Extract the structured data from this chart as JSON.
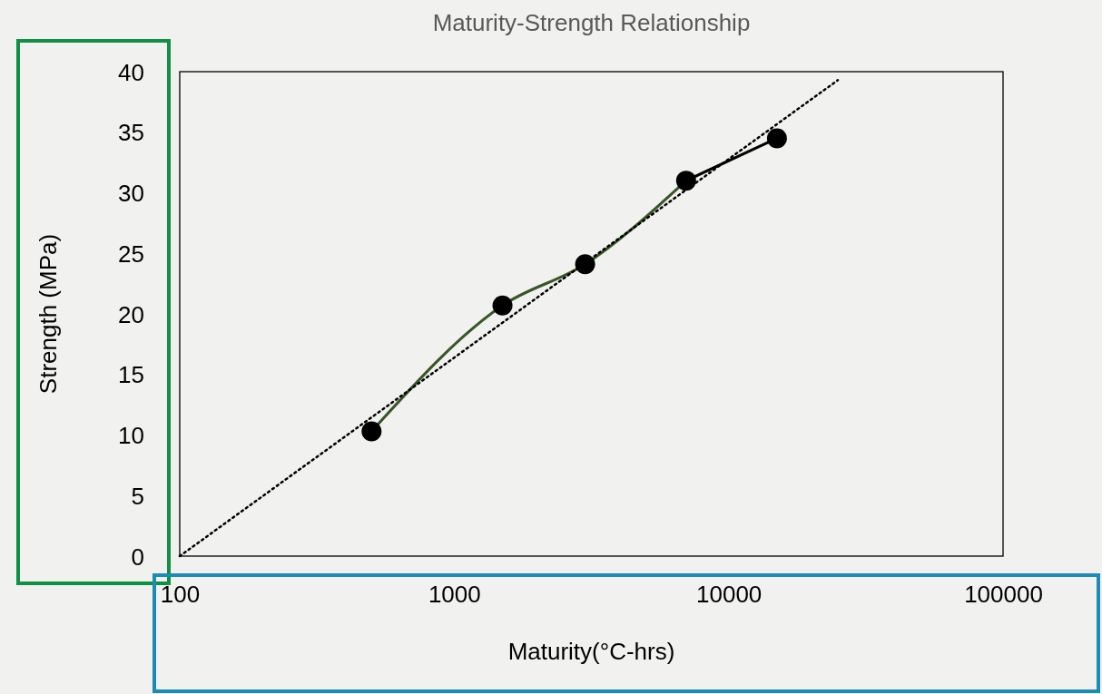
{
  "chart_data": {
    "type": "scatter",
    "title": "Maturity-Strength Relationship",
    "xlabel": "Maturity(°C-hrs)",
    "ylabel": "Strength (MPa)",
    "log": "x",
    "xlim": [
      100,
      100000
    ],
    "xticks": [
      100,
      1000,
      10000,
      100000
    ],
    "ylim": [
      0,
      40
    ],
    "yticks": [
      0,
      5,
      10,
      15,
      20,
      25,
      30,
      35,
      40
    ],
    "grid": false,
    "series": [
      {
        "type": "line",
        "color": "#375623",
        "marker": "none",
        "line_style": "solid",
        "x": [
          500,
          1500,
          3000,
          7000
        ],
        "values": [
          10.3,
          20.7,
          24.1,
          31.0
        ]
      },
      {
        "type": "line",
        "color": "#000000",
        "marker": "none",
        "line_style": "solid",
        "x": [
          7000,
          15000
        ],
        "values": [
          31.0,
          34.5
        ]
      },
      {
        "type": "line",
        "color": "#000000",
        "marker": "none",
        "line_style": "dotted",
        "x": [
          100,
          25000
        ],
        "values": [
          0,
          39.3
        ]
      },
      {
        "color": "#000000",
        "marker": "circle",
        "x": [
          500,
          1500,
          3000,
          7000,
          15000
        ],
        "values": [
          10.3,
          20.7,
          24.1,
          31.0,
          34.5
        ]
      }
    ]
  }
}
